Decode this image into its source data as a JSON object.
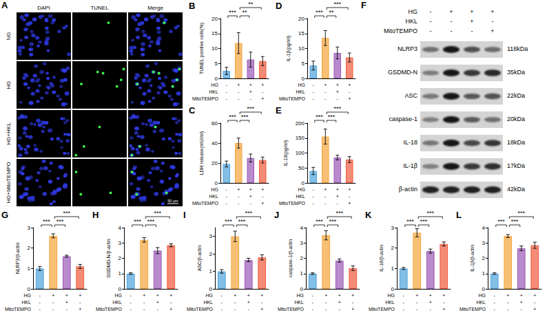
{
  "conditions": [
    {
      "name": "HG",
      "signs": [
        "-",
        "+",
        "+",
        "+"
      ]
    },
    {
      "name": "HKL",
      "signs": [
        "-",
        "-",
        "+",
        "-"
      ]
    },
    {
      "name": "MitoTEMPO",
      "signs": [
        "-",
        "-",
        "-",
        "+"
      ]
    }
  ],
  "panel_a": {
    "letter": "A",
    "columns": [
      "DAPI",
      "TUNEL",
      "Merge"
    ],
    "rows": [
      "NG",
      "HG",
      "HG+HKL",
      "HG+MitoTEMPO"
    ],
    "scale_bar": "50 μm"
  },
  "blot": {
    "letter": "F",
    "bands": [
      {
        "name": "NLRP3",
        "size": "118kDa"
      },
      {
        "name": "GSDMD-N",
        "size": "35kDa"
      },
      {
        "name": "ASC",
        "size": "22kDa"
      },
      {
        "name": "caspase-1",
        "size": "20kDa"
      },
      {
        "name": "IL-18",
        "size": "18kDa"
      },
      {
        "name": "IL-1β",
        "size": "17kDa"
      },
      {
        "name": "β-actin",
        "size": "42kDa"
      }
    ]
  },
  "chart_data": [
    {
      "panel": "B",
      "type": "bar",
      "ylabel": "TUNEL positive cells(%)",
      "values": [
        2.5,
        11.8,
        6.3,
        5.8
      ],
      "errors": [
        1.2,
        3.5,
        2.5,
        1.5
      ],
      "colors": [
        "#4fa3dc",
        "#f5a53a",
        "#9b59b6",
        "#ef5a3c"
      ],
      "ylim": [
        0,
        20
      ],
      "yticks": [
        0,
        5,
        10,
        15,
        20
      ],
      "grid": false,
      "significance": [
        {
          "from": 0,
          "to": 1,
          "label": "***"
        },
        {
          "from": 1,
          "to": 2,
          "label": "**"
        },
        {
          "from": 1,
          "to": 3,
          "label": "**"
        }
      ]
    },
    {
      "panel": "C",
      "type": "bar",
      "ylabel": "LDH release(mU/ml)",
      "values": [
        19,
        40,
        25,
        23
      ],
      "errors": [
        3,
        5,
        4,
        3
      ],
      "colors": [
        "#4fa3dc",
        "#f5a53a",
        "#9b59b6",
        "#ef5a3c"
      ],
      "ylim": [
        0,
        60
      ],
      "yticks": [
        0,
        20,
        40,
        60
      ],
      "grid": false,
      "significance": [
        {
          "from": 0,
          "to": 1,
          "label": "***"
        },
        {
          "from": 1,
          "to": 2,
          "label": "***"
        },
        {
          "from": 1,
          "to": 3,
          "label": "***"
        }
      ]
    },
    {
      "panel": "D",
      "type": "bar",
      "ylabel": "IL-1β(pg/ml)",
      "values": [
        4.3,
        13.5,
        8.5,
        7
      ],
      "errors": [
        1.5,
        2.5,
        2,
        1.5
      ],
      "colors": [
        "#4fa3dc",
        "#f5a53a",
        "#9b59b6",
        "#ef5a3c"
      ],
      "ylim": [
        0,
        20
      ],
      "yticks": [
        0,
        5,
        10,
        15,
        20
      ],
      "grid": false,
      "significance": [
        {
          "from": 0,
          "to": 1,
          "label": "***"
        },
        {
          "from": 1,
          "to": 2,
          "label": "**"
        },
        {
          "from": 1,
          "to": 3,
          "label": "***"
        }
      ]
    },
    {
      "panel": "E",
      "type": "bar",
      "ylabel": "IL-18(pg/ml)",
      "values": [
        40,
        155,
        85,
        78
      ],
      "errors": [
        12,
        25,
        8,
        10
      ],
      "colors": [
        "#4fa3dc",
        "#f5a53a",
        "#9b59b6",
        "#ef5a3c"
      ],
      "ylim": [
        0,
        200
      ],
      "yticks": [
        0,
        50,
        100,
        150,
        200
      ],
      "grid": false,
      "significance": [
        {
          "from": 0,
          "to": 1,
          "label": "***"
        },
        {
          "from": 1,
          "to": 2,
          "label": "***"
        },
        {
          "from": 1,
          "to": 3,
          "label": "***"
        }
      ]
    },
    {
      "panel": "G",
      "type": "bar",
      "ylabel": "NLRP3/β-actin",
      "values": [
        1.0,
        2.6,
        1.6,
        1.1
      ],
      "errors": [
        0.1,
        0.1,
        0.05,
        0.1
      ],
      "colors": [
        "#4fa3dc",
        "#f5a53a",
        "#9b59b6",
        "#ef5a3c"
      ],
      "ylim": [
        0,
        3
      ],
      "yticks": [
        0,
        1,
        2,
        3
      ],
      "grid": false,
      "significance": [
        {
          "from": 0,
          "to": 1,
          "label": "***"
        },
        {
          "from": 1,
          "to": 2,
          "label": "***"
        },
        {
          "from": 1,
          "to": 3,
          "label": "***"
        }
      ]
    },
    {
      "panel": "H",
      "type": "bar",
      "ylabel": "GSDMD-N/β-actin",
      "values": [
        1.0,
        3.2,
        2.5,
        2.85
      ],
      "errors": [
        0.05,
        0.15,
        0.2,
        0.1
      ],
      "colors": [
        "#4fa3dc",
        "#f5a53a",
        "#9b59b6",
        "#ef5a3c"
      ],
      "ylim": [
        0,
        4
      ],
      "yticks": [
        0,
        1,
        2,
        3,
        4
      ],
      "grid": false,
      "significance": [
        {
          "from": 0,
          "to": 1,
          "label": "***"
        },
        {
          "from": 1,
          "to": 2,
          "label": "***"
        },
        {
          "from": 1,
          "to": 3,
          "label": "***"
        }
      ]
    },
    {
      "panel": "I",
      "type": "bar",
      "ylabel": "ASC/β-actin",
      "values": [
        1.0,
        3.0,
        1.65,
        1.8
      ],
      "errors": [
        0.1,
        0.3,
        0.1,
        0.15
      ],
      "colors": [
        "#4fa3dc",
        "#f5a53a",
        "#9b59b6",
        "#ef5a3c"
      ],
      "ylim": [
        0,
        3.5
      ],
      "yticks": [
        0,
        1,
        2,
        3
      ],
      "grid": false,
      "significance": [
        {
          "from": 0,
          "to": 1,
          "label": "***"
        },
        {
          "from": 1,
          "to": 2,
          "label": "***"
        },
        {
          "from": 1,
          "to": 3,
          "label": "***"
        }
      ]
    },
    {
      "panel": "J",
      "type": "bar",
      "ylabel": "caspase-1/β-actin",
      "values": [
        1.0,
        3.5,
        1.85,
        1.35
      ],
      "errors": [
        0.05,
        0.3,
        0.1,
        0.15
      ],
      "colors": [
        "#4fa3dc",
        "#f5a53a",
        "#9b59b6",
        "#ef5a3c"
      ],
      "ylim": [
        0,
        4
      ],
      "yticks": [
        0,
        1,
        2,
        3,
        4
      ],
      "grid": false,
      "significance": [
        {
          "from": 0,
          "to": 1,
          "label": "***"
        },
        {
          "from": 1,
          "to": 2,
          "label": "***"
        },
        {
          "from": 1,
          "to": 3,
          "label": "***"
        }
      ]
    },
    {
      "panel": "K",
      "type": "bar",
      "ylabel": "IL-18/β-actin",
      "values": [
        1.0,
        2.75,
        1.85,
        2.2
      ],
      "errors": [
        0.05,
        0.2,
        0.1,
        0.1
      ],
      "colors": [
        "#4fa3dc",
        "#f5a53a",
        "#9b59b6",
        "#ef5a3c"
      ],
      "ylim": [
        0,
        3
      ],
      "yticks": [
        0,
        1,
        2,
        3
      ],
      "grid": false,
      "significance": [
        {
          "from": 0,
          "to": 1,
          "label": "***"
        },
        {
          "from": 1,
          "to": 2,
          "label": "***"
        },
        {
          "from": 1,
          "to": 3,
          "label": "***"
        }
      ]
    },
    {
      "panel": "L",
      "type": "bar",
      "ylabel": "IL-1β/β-actin",
      "values": [
        1.0,
        3.45,
        2.65,
        2.85
      ],
      "errors": [
        0.05,
        0.1,
        0.15,
        0.2
      ],
      "colors": [
        "#4fa3dc",
        "#f5a53a",
        "#9b59b6",
        "#ef5a3c"
      ],
      "ylim": [
        0,
        4
      ],
      "yticks": [
        0,
        1,
        2,
        3,
        4
      ],
      "grid": false,
      "significance": [
        {
          "from": 0,
          "to": 1,
          "label": "***"
        },
        {
          "from": 1,
          "to": 2,
          "label": "***"
        },
        {
          "from": 1,
          "to": 3,
          "label": "***"
        }
      ]
    }
  ]
}
